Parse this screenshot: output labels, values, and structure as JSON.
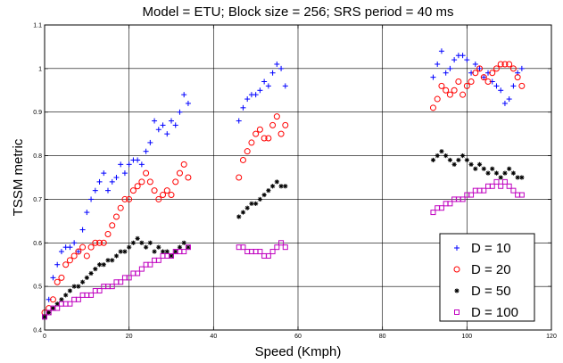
{
  "chart_data": {
    "type": "scatter",
    "title": "Model = ETU;   Block size = 256; SRS period = 40 ms",
    "xlabel": "Speed (Kmph)",
    "ylabel": "TSSM metric",
    "xlim": [
      0,
      120
    ],
    "ylim": [
      0.4,
      1.1
    ],
    "xticks": [
      0,
      20,
      40,
      60,
      80,
      100,
      120
    ],
    "yticks": [
      0.4,
      0.5,
      0.6,
      0.7,
      0.8,
      0.9,
      1.0,
      1.1
    ],
    "xtick_labels": [
      "0",
      "20",
      "40",
      "60",
      "80",
      "100",
      "120"
    ],
    "ytick_labels": [
      "0.4",
      "0.5",
      "0.6",
      "0.7",
      "0.8",
      "0.9",
      "1",
      "1.1"
    ],
    "grid": true,
    "legend_position": "bottom-right",
    "series": [
      {
        "name": "D = 10",
        "color": "#0000ff",
        "marker": "plus",
        "points": [
          [
            0,
            0.43
          ],
          [
            1,
            0.47
          ],
          [
            2,
            0.52
          ],
          [
            3,
            0.55
          ],
          [
            4,
            0.58
          ],
          [
            5,
            0.59
          ],
          [
            6,
            0.59
          ],
          [
            7,
            0.6
          ],
          [
            8,
            0.58
          ],
          [
            9,
            0.63
          ],
          [
            10,
            0.67
          ],
          [
            11,
            0.7
          ],
          [
            12,
            0.72
          ],
          [
            13,
            0.74
          ],
          [
            14,
            0.76
          ],
          [
            15,
            0.72
          ],
          [
            16,
            0.74
          ],
          [
            17,
            0.75
          ],
          [
            18,
            0.78
          ],
          [
            19,
            0.76
          ],
          [
            20,
            0.78
          ],
          [
            21,
            0.79
          ],
          [
            22,
            0.79
          ],
          [
            23,
            0.78
          ],
          [
            24,
            0.81
          ],
          [
            25,
            0.83
          ],
          [
            26,
            0.88
          ],
          [
            27,
            0.86
          ],
          [
            28,
            0.87
          ],
          [
            29,
            0.85
          ],
          [
            30,
            0.88
          ],
          [
            31,
            0.87
          ],
          [
            32,
            0.9
          ],
          [
            33,
            0.94
          ],
          [
            34,
            0.92
          ],
          [
            46,
            0.88
          ],
          [
            47,
            0.91
          ],
          [
            48,
            0.93
          ],
          [
            49,
            0.94
          ],
          [
            50,
            0.94
          ],
          [
            51,
            0.95
          ],
          [
            52,
            0.97
          ],
          [
            53,
            0.96
          ],
          [
            54,
            0.99
          ],
          [
            55,
            1.01
          ],
          [
            56,
            1.0
          ],
          [
            57,
            0.96
          ],
          [
            92,
            0.98
          ],
          [
            93,
            1.01
          ],
          [
            94,
            1.04
          ],
          [
            95,
            0.99
          ],
          [
            96,
            1.0
          ],
          [
            97,
            1.02
          ],
          [
            98,
            1.03
          ],
          [
            99,
            1.03
          ],
          [
            100,
            1.02
          ],
          [
            101,
            0.99
          ],
          [
            102,
            1.01
          ],
          [
            103,
            1.0
          ],
          [
            104,
            0.98
          ],
          [
            105,
            0.99
          ],
          [
            106,
            0.97
          ],
          [
            107,
            0.96
          ],
          [
            108,
            0.95
          ],
          [
            109,
            0.92
          ],
          [
            110,
            0.93
          ],
          [
            111,
            0.96
          ],
          [
            112,
            0.99
          ],
          [
            113,
            1.0
          ]
        ]
      },
      {
        "name": "D = 20",
        "color": "#ff0000",
        "marker": "circle",
        "points": [
          [
            0,
            0.44
          ],
          [
            1,
            0.45
          ],
          [
            2,
            0.47
          ],
          [
            3,
            0.51
          ],
          [
            4,
            0.52
          ],
          [
            5,
            0.55
          ],
          [
            6,
            0.56
          ],
          [
            7,
            0.57
          ],
          [
            8,
            0.58
          ],
          [
            9,
            0.59
          ],
          [
            10,
            0.57
          ],
          [
            11,
            0.59
          ],
          [
            12,
            0.6
          ],
          [
            13,
            0.6
          ],
          [
            14,
            0.6
          ],
          [
            15,
            0.62
          ],
          [
            16,
            0.64
          ],
          [
            17,
            0.66
          ],
          [
            18,
            0.68
          ],
          [
            19,
            0.7
          ],
          [
            20,
            0.7
          ],
          [
            21,
            0.72
          ],
          [
            22,
            0.73
          ],
          [
            23,
            0.74
          ],
          [
            24,
            0.76
          ],
          [
            25,
            0.74
          ],
          [
            26,
            0.72
          ],
          [
            27,
            0.7
          ],
          [
            28,
            0.71
          ],
          [
            29,
            0.72
          ],
          [
            30,
            0.71
          ],
          [
            31,
            0.74
          ],
          [
            32,
            0.76
          ],
          [
            33,
            0.78
          ],
          [
            34,
            0.75
          ],
          [
            46,
            0.75
          ],
          [
            47,
            0.79
          ],
          [
            48,
            0.81
          ],
          [
            49,
            0.83
          ],
          [
            50,
            0.85
          ],
          [
            51,
            0.86
          ],
          [
            52,
            0.84
          ],
          [
            53,
            0.84
          ],
          [
            54,
            0.87
          ],
          [
            55,
            0.89
          ],
          [
            56,
            0.85
          ],
          [
            57,
            0.87
          ],
          [
            92,
            0.91
          ],
          [
            93,
            0.93
          ],
          [
            94,
            0.96
          ],
          [
            95,
            0.95
          ],
          [
            96,
            0.94
          ],
          [
            97,
            0.95
          ],
          [
            98,
            0.97
          ],
          [
            99,
            0.94
          ],
          [
            100,
            0.96
          ],
          [
            101,
            0.97
          ],
          [
            102,
            0.99
          ],
          [
            103,
            1.0
          ],
          [
            104,
            0.98
          ],
          [
            105,
            0.97
          ],
          [
            106,
            0.99
          ],
          [
            107,
            1.0
          ],
          [
            108,
            1.01
          ],
          [
            109,
            1.01
          ],
          [
            110,
            1.01
          ],
          [
            111,
            1.0
          ],
          [
            112,
            0.98
          ],
          [
            113,
            0.96
          ]
        ]
      },
      {
        "name": "D = 50",
        "color": "#000000",
        "marker": "star",
        "points": [
          [
            0,
            0.43
          ],
          [
            1,
            0.44
          ],
          [
            2,
            0.45
          ],
          [
            3,
            0.46
          ],
          [
            4,
            0.47
          ],
          [
            5,
            0.48
          ],
          [
            6,
            0.49
          ],
          [
            7,
            0.5
          ],
          [
            8,
            0.5
          ],
          [
            9,
            0.51
          ],
          [
            10,
            0.52
          ],
          [
            11,
            0.53
          ],
          [
            12,
            0.54
          ],
          [
            13,
            0.55
          ],
          [
            14,
            0.55
          ],
          [
            15,
            0.56
          ],
          [
            16,
            0.56
          ],
          [
            17,
            0.57
          ],
          [
            18,
            0.58
          ],
          [
            19,
            0.58
          ],
          [
            20,
            0.59
          ],
          [
            21,
            0.6
          ],
          [
            22,
            0.61
          ],
          [
            23,
            0.6
          ],
          [
            24,
            0.59
          ],
          [
            25,
            0.6
          ],
          [
            26,
            0.58
          ],
          [
            27,
            0.59
          ],
          [
            28,
            0.58
          ],
          [
            29,
            0.58
          ],
          [
            30,
            0.57
          ],
          [
            31,
            0.58
          ],
          [
            32,
            0.59
          ],
          [
            33,
            0.6
          ],
          [
            34,
            0.59
          ],
          [
            46,
            0.66
          ],
          [
            47,
            0.67
          ],
          [
            48,
            0.68
          ],
          [
            49,
            0.69
          ],
          [
            50,
            0.69
          ],
          [
            51,
            0.7
          ],
          [
            52,
            0.71
          ],
          [
            53,
            0.72
          ],
          [
            54,
            0.73
          ],
          [
            55,
            0.74
          ],
          [
            56,
            0.73
          ],
          [
            57,
            0.73
          ],
          [
            92,
            0.79
          ],
          [
            93,
            0.8
          ],
          [
            94,
            0.81
          ],
          [
            95,
            0.8
          ],
          [
            96,
            0.79
          ],
          [
            97,
            0.78
          ],
          [
            98,
            0.79
          ],
          [
            99,
            0.8
          ],
          [
            100,
            0.79
          ],
          [
            101,
            0.78
          ],
          [
            102,
            0.77
          ],
          [
            103,
            0.78
          ],
          [
            104,
            0.77
          ],
          [
            105,
            0.76
          ],
          [
            106,
            0.77
          ],
          [
            107,
            0.76
          ],
          [
            108,
            0.75
          ],
          [
            109,
            0.76
          ],
          [
            110,
            0.77
          ],
          [
            111,
            0.76
          ],
          [
            112,
            0.75
          ],
          [
            113,
            0.75
          ]
        ]
      },
      {
        "name": "D = 100",
        "color": "#bf00bf",
        "marker": "square",
        "points": [
          [
            0,
            0.43
          ],
          [
            1,
            0.44
          ],
          [
            2,
            0.45
          ],
          [
            3,
            0.45
          ],
          [
            4,
            0.46
          ],
          [
            5,
            0.46
          ],
          [
            6,
            0.46
          ],
          [
            7,
            0.47
          ],
          [
            8,
            0.47
          ],
          [
            9,
            0.48
          ],
          [
            10,
            0.48
          ],
          [
            11,
            0.48
          ],
          [
            12,
            0.49
          ],
          [
            13,
            0.49
          ],
          [
            14,
            0.5
          ],
          [
            15,
            0.5
          ],
          [
            16,
            0.5
          ],
          [
            17,
            0.51
          ],
          [
            18,
            0.51
          ],
          [
            19,
            0.52
          ],
          [
            20,
            0.52
          ],
          [
            21,
            0.53
          ],
          [
            22,
            0.53
          ],
          [
            23,
            0.54
          ],
          [
            24,
            0.55
          ],
          [
            25,
            0.55
          ],
          [
            26,
            0.56
          ],
          [
            27,
            0.56
          ],
          [
            28,
            0.57
          ],
          [
            29,
            0.57
          ],
          [
            30,
            0.57
          ],
          [
            31,
            0.58
          ],
          [
            32,
            0.58
          ],
          [
            33,
            0.58
          ],
          [
            34,
            0.59
          ],
          [
            46,
            0.59
          ],
          [
            47,
            0.59
          ],
          [
            48,
            0.58
          ],
          [
            49,
            0.58
          ],
          [
            50,
            0.58
          ],
          [
            51,
            0.58
          ],
          [
            52,
            0.57
          ],
          [
            53,
            0.57
          ],
          [
            54,
            0.58
          ],
          [
            55,
            0.59
          ],
          [
            56,
            0.6
          ],
          [
            57,
            0.59
          ],
          [
            92,
            0.67
          ],
          [
            93,
            0.68
          ],
          [
            94,
            0.68
          ],
          [
            95,
            0.69
          ],
          [
            96,
            0.69
          ],
          [
            97,
            0.7
          ],
          [
            98,
            0.7
          ],
          [
            99,
            0.7
          ],
          [
            100,
            0.71
          ],
          [
            101,
            0.71
          ],
          [
            102,
            0.72
          ],
          [
            103,
            0.72
          ],
          [
            104,
            0.72
          ],
          [
            105,
            0.73
          ],
          [
            106,
            0.73
          ],
          [
            107,
            0.74
          ],
          [
            108,
            0.73
          ],
          [
            109,
            0.74
          ],
          [
            110,
            0.73
          ],
          [
            111,
            0.72
          ],
          [
            112,
            0.71
          ],
          [
            113,
            0.71
          ]
        ]
      }
    ]
  }
}
